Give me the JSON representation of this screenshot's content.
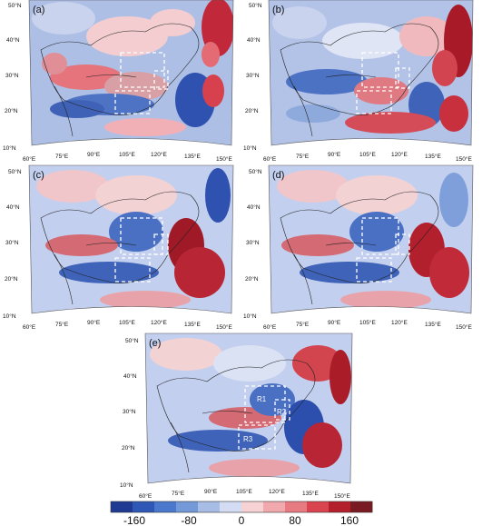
{
  "figure": {
    "panels": [
      {
        "label": "(a)",
        "lon_ticks": [
          "60°E",
          "75°E",
          "90°E",
          "105°E",
          "120°E",
          "135°E",
          "150°E"
        ],
        "lat_ticks": [
          "10°N",
          "20°N",
          "30°N",
          "40°N",
          "50°N"
        ]
      },
      {
        "label": "(b)",
        "lon_ticks": [
          "60°E",
          "75°E",
          "90°E",
          "105°E",
          "120°E",
          "135°E",
          "150°E"
        ],
        "lat_ticks": [
          "10°N",
          "20°N",
          "30°N",
          "40°N",
          "50°N"
        ]
      },
      {
        "label": "(c)",
        "lon_ticks": [
          "60°E",
          "75°E",
          "90°E",
          "105°E",
          "120°E",
          "135°E",
          "150°E"
        ],
        "lat_ticks": [
          "10°N",
          "20°N",
          "30°N",
          "40°N",
          "50°N"
        ]
      },
      {
        "label": "(d)",
        "lon_ticks": [
          "60°E",
          "75°E",
          "90°E",
          "105°E",
          "120°E",
          "135°E",
          "150°E"
        ],
        "lat_ticks": [
          "10°N",
          "20°N",
          "30°N",
          "40°N",
          "50°N"
        ]
      },
      {
        "label": "(e)",
        "lon_ticks": [
          "60°E",
          "75°E",
          "90°E",
          "105°E",
          "120°E",
          "135°E",
          "150°E"
        ],
        "lat_ticks": [
          "10°N",
          "20°N",
          "30°N",
          "40°N",
          "50°N"
        ],
        "regions": [
          "R1",
          "R2",
          "R3"
        ]
      }
    ],
    "colorbar": {
      "labels": [
        "-160",
        "-80",
        "0",
        "80",
        "160"
      ],
      "colors": [
        "#1f3a93",
        "#2f57b5",
        "#4a78cc",
        "#7399d8",
        "#a7bde6",
        "#d3dcf2",
        "#f6d2d4",
        "#f2a9ae",
        "#e87a82",
        "#d9444f",
        "#b41f2c",
        "#7a1a22"
      ]
    }
  }
}
